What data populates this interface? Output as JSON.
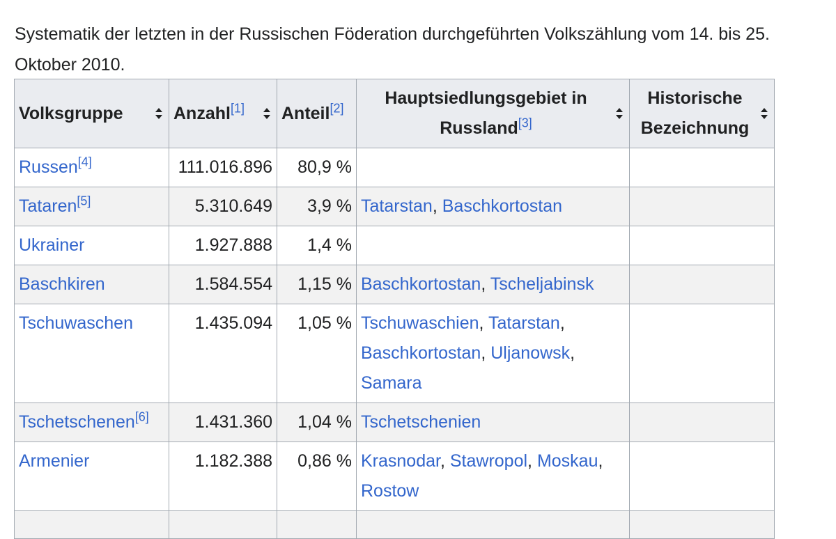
{
  "intro": "Systematik der letzten in der Russischen Föderation durchgeführten Volkszählung vom 14. bis 25. Oktober 2010.",
  "headers": [
    {
      "label": "Volksgruppe",
      "ref": ""
    },
    {
      "label": "Anzahl",
      "ref": "[1]"
    },
    {
      "label": "Anteil",
      "ref": "[2]"
    },
    {
      "label": "Hauptsiedlungsgebiet in Russland",
      "ref": "[3]"
    },
    {
      "label": "Historische Bezeichnung",
      "ref": ""
    }
  ],
  "rows": [
    {
      "group": "Russen",
      "ref": "[4]",
      "count": "111.016.896",
      "share": "80,9 %",
      "regions": []
    },
    {
      "group": "Tataren",
      "ref": "[5]",
      "count": "5.310.649",
      "share": "3,9 %",
      "regions": [
        "Tatarstan",
        "Baschkortostan"
      ]
    },
    {
      "group": "Ukrainer",
      "ref": "",
      "count": "1.927.888",
      "share": "1,4 %",
      "regions": []
    },
    {
      "group": "Baschkiren",
      "ref": "",
      "count": "1.584.554",
      "share": "1,15 %",
      "regions": [
        "Baschkortostan",
        "Tscheljabinsk"
      ]
    },
    {
      "group": "Tschuwaschen",
      "ref": "",
      "count": "1.435.094",
      "share": "1,05 %",
      "regions": [
        "Tschuwaschien",
        "Tatarstan",
        "Baschkortostan",
        "Uljanowsk",
        "Samara"
      ]
    },
    {
      "group": "Tschetschenen",
      "ref": "[6]",
      "count": "1.431.360",
      "share": "1,04 %",
      "regions": [
        "Tschetschenien"
      ]
    },
    {
      "group": "Armenier",
      "ref": "",
      "count": "1.182.388",
      "share": "0,86 %",
      "regions": [
        "Krasnodar",
        "Stawropol",
        "Moskau",
        "Rostow"
      ]
    }
  ],
  "colors": {
    "link": "#3366cc",
    "header_bg": "#eaecf0",
    "border": "#a2a9b1",
    "text": "#202122"
  }
}
